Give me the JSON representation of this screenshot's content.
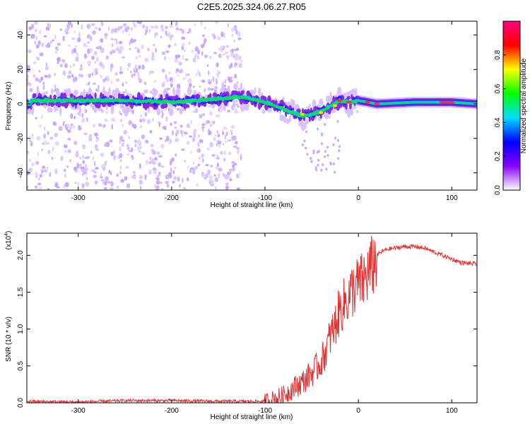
{
  "title": "C2E5.2025.324.06.27.R05",
  "chart_data": [
    {
      "type": "heatmap",
      "xlabel": "Height of straight line (km)",
      "ylabel": "Frequency (Hz)",
      "xlim": [
        -355,
        127
      ],
      "ylim": [
        -50,
        48
      ],
      "x_ticks": [
        -300,
        -200,
        -100,
        0,
        100
      ],
      "y_ticks": [
        -40,
        -20,
        0,
        20,
        40
      ],
      "ridge": [
        {
          "x": -350,
          "y": 2
        },
        {
          "x": -300,
          "y": 2
        },
        {
          "x": -250,
          "y": 2
        },
        {
          "x": -200,
          "y": 1
        },
        {
          "x": -150,
          "y": 3
        },
        {
          "x": -125,
          "y": 4
        },
        {
          "x": -100,
          "y": 1
        },
        {
          "x": -80,
          "y": -3
        },
        {
          "x": -60,
          "y": -7
        },
        {
          "x": -50,
          "y": -6
        },
        {
          "x": -35,
          "y": -3
        },
        {
          "x": -20,
          "y": 2
        },
        {
          "x": -10,
          "y": 1
        },
        {
          "x": 0,
          "y": 2
        },
        {
          "x": 20,
          "y": 0
        },
        {
          "x": 60,
          "y": 1
        },
        {
          "x": 100,
          "y": 1
        },
        {
          "x": 127,
          "y": 0
        }
      ],
      "colorbar": {
        "label": "Normalized spectral amplitude",
        "range": [
          0,
          1
        ],
        "ticks": [
          "0.0",
          "0.2",
          "0.4",
          "0.6",
          "0.8"
        ],
        "tick_values": [
          0,
          0.2,
          0.4,
          0.6,
          0.8
        ],
        "colors": [
          "#ffffff",
          "#8800ff",
          "#0000ff",
          "#00ddff",
          "#00ff00",
          "#ffff00",
          "#ff0000",
          "#ff0080"
        ]
      }
    },
    {
      "type": "line",
      "xlabel": "Height of straight line (km)",
      "ylabel": "SNR (10 * v/v)",
      "scale_label": "(x10",
      "scale_exponent": "4",
      "scale_close": ")",
      "xlim": [
        -355,
        127
      ],
      "ylim": [
        0,
        2.3
      ],
      "x_ticks": [
        -300,
        -200,
        -100,
        0,
        100
      ],
      "y_ticks": [
        "0.0",
        "0.5",
        "1.0",
        "1.5",
        "2.0"
      ],
      "y_tick_values": [
        0,
        0.5,
        1.0,
        1.5,
        2.0
      ],
      "color": "#e03030",
      "series": [
        {
          "x": [
            -355,
            -300,
            -250,
            -200,
            -150,
            -120,
            -100,
            -90,
            -80,
            -70,
            -60,
            -50,
            -40,
            -35,
            -30,
            -25,
            -20,
            -15,
            -10,
            -5,
            0,
            5,
            10,
            15,
            20,
            25,
            30,
            40,
            50,
            60,
            70,
            80,
            90,
            100,
            110,
            127
          ],
          "y": [
            0.02,
            0.01,
            0.03,
            0.03,
            0.02,
            0.02,
            0.02,
            0.05,
            0.1,
            0.2,
            0.28,
            0.4,
            0.55,
            0.7,
            0.9,
            1.05,
            1.25,
            1.35,
            1.45,
            1.55,
            1.6,
            1.65,
            1.75,
            1.85,
            2.0,
            2.05,
            2.08,
            2.1,
            2.12,
            2.12,
            2.1,
            2.05,
            2.0,
            1.95,
            1.9,
            1.88
          ]
        }
      ]
    }
  ]
}
